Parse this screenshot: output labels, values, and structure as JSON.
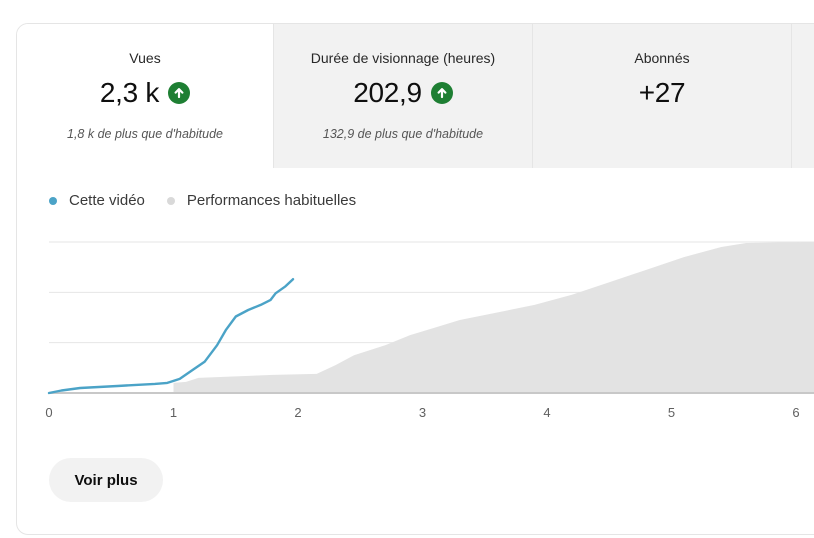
{
  "metrics": [
    {
      "label": "Vues",
      "value": "2,3 k",
      "trend": "up",
      "sub": "1,8 k de plus que d'habitude"
    },
    {
      "label": "Durée de visionnage (heures)",
      "value": "202,9",
      "trend": "up",
      "sub": "132,9 de plus que d'habitude"
    },
    {
      "label": "Abonnés",
      "value": "+27",
      "trend": "",
      "sub": ""
    }
  ],
  "icons": {
    "trend_up": "arrow-up-circle-icon"
  },
  "colors": {
    "this_video": "#4ba3c7",
    "typical": "#e3e3e3",
    "trend_up": "#1e7f33"
  },
  "legend": {
    "this_video": "Cette vidéo",
    "typical": "Performances habituelles"
  },
  "chart_data": {
    "type": "line",
    "x_tick_labels": [
      "0",
      "1",
      "2",
      "3",
      "4",
      "5",
      "6"
    ],
    "xlim": [
      0,
      6.1
    ],
    "ylim": [
      0,
      3
    ],
    "grid": true,
    "legend_position": "top-left",
    "series": [
      {
        "name": "Cette vidéo",
        "kind": "line",
        "points": [
          [
            0,
            0
          ],
          [
            0.1,
            0.05
          ],
          [
            0.25,
            0.1
          ],
          [
            0.4,
            0.12
          ],
          [
            0.55,
            0.14
          ],
          [
            0.7,
            0.16
          ],
          [
            0.85,
            0.18
          ],
          [
            0.95,
            0.2
          ],
          [
            1.05,
            0.28
          ],
          [
            1.15,
            0.45
          ],
          [
            1.25,
            0.62
          ],
          [
            1.35,
            0.95
          ],
          [
            1.42,
            1.25
          ],
          [
            1.5,
            1.52
          ],
          [
            1.6,
            1.65
          ],
          [
            1.7,
            1.75
          ],
          [
            1.78,
            1.85
          ],
          [
            1.82,
            1.98
          ],
          [
            1.9,
            2.12
          ],
          [
            1.96,
            2.26
          ]
        ]
      },
      {
        "name": "Performances habituelles",
        "kind": "area",
        "points": [
          [
            1,
            0.2
          ],
          [
            1.1,
            0.22
          ],
          [
            1.2,
            0.3
          ],
          [
            1.4,
            0.32
          ],
          [
            1.8,
            0.36
          ],
          [
            2.15,
            0.38
          ],
          [
            2.3,
            0.55
          ],
          [
            2.45,
            0.75
          ],
          [
            2.7,
            0.95
          ],
          [
            2.9,
            1.15
          ],
          [
            3.1,
            1.3
          ],
          [
            3.3,
            1.45
          ],
          [
            3.6,
            1.6
          ],
          [
            3.9,
            1.75
          ],
          [
            4.2,
            1.95
          ],
          [
            4.5,
            2.2
          ],
          [
            4.8,
            2.45
          ],
          [
            5.1,
            2.7
          ],
          [
            5.4,
            2.9
          ],
          [
            5.6,
            2.98
          ],
          [
            6.1,
            3.0
          ]
        ]
      }
    ]
  },
  "voir_plus": "Voir plus"
}
